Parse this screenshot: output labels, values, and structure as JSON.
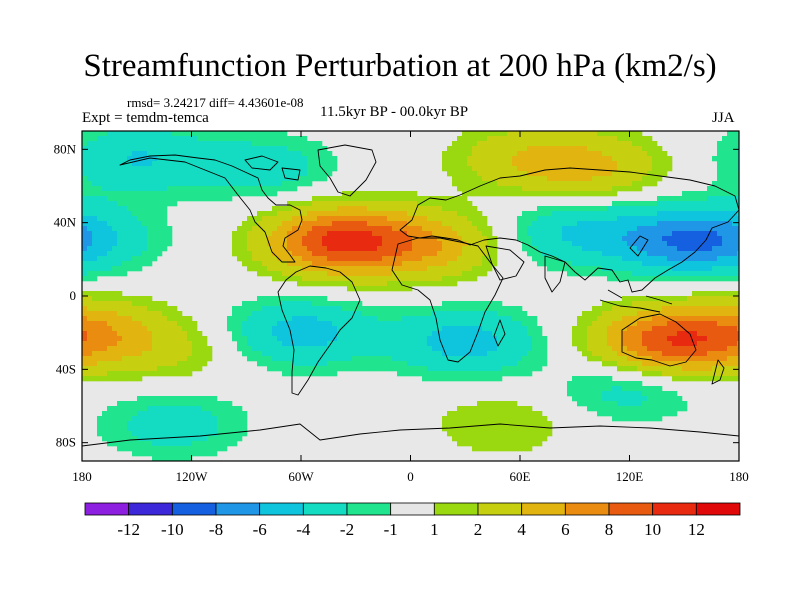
{
  "title": "Streamfunction Perturbation at 200 hPa (km2/s)",
  "stats": "rmsd= 3.24217  diff= 4.43601e-08",
  "experiment": "Expt = temdm-temca",
  "period": "11.5kyr BP - 00.0kyr BP",
  "season": "JJA",
  "map": {
    "lon_range": [
      -180,
      180
    ],
    "lat_range": [
      -90,
      90
    ],
    "x_ticks": [
      {
        "lon": -180,
        "label": "180"
      },
      {
        "lon": -120,
        "label": "120W"
      },
      {
        "lon": -60,
        "label": "60W"
      },
      {
        "lon": 0,
        "label": "0"
      },
      {
        "lon": 60,
        "label": "60E"
      },
      {
        "lon": 120,
        "label": "120E"
      },
      {
        "lon": 180,
        "label": "180"
      }
    ],
    "y_ticks": [
      {
        "lat": 80,
        "label": "80N"
      },
      {
        "lat": 40,
        "label": "40N"
      },
      {
        "lat": 0,
        "label": "0"
      },
      {
        "lat": -40,
        "label": "40S"
      },
      {
        "lat": -80,
        "label": "80S"
      }
    ],
    "background_color": "#e8e8e8",
    "anomaly_centers": [
      {
        "lon": -150,
        "lat": 75,
        "value": -4
      },
      {
        "lon": -80,
        "lat": 70,
        "value": -3
      },
      {
        "lon": 100,
        "lat": 70,
        "value": 4
      },
      {
        "lon": 60,
        "lat": 75,
        "value": 3
      },
      {
        "lon": -40,
        "lat": 30,
        "value": 10
      },
      {
        "lon": 10,
        "lat": 28,
        "value": 5
      },
      {
        "lon": -175,
        "lat": 32,
        "value": -3
      },
      {
        "lon": 150,
        "lat": 30,
        "value": -7
      },
      {
        "lon": 90,
        "lat": 35,
        "value": -4
      },
      {
        "lon": -60,
        "lat": -20,
        "value": -5
      },
      {
        "lon": 30,
        "lat": -25,
        "value": -5
      },
      {
        "lon": -130,
        "lat": -30,
        "value": 2
      },
      {
        "lon": 140,
        "lat": -25,
        "value": 9
      },
      {
        "lon": -175,
        "lat": -20,
        "value": 5
      },
      {
        "lon": 120,
        "lat": -50,
        "value": -3
      },
      {
        "lon": -130,
        "lat": -70,
        "value": -3
      },
      {
        "lon": 50,
        "lat": -70,
        "value": 2
      }
    ]
  },
  "colorbar": {
    "labels": [
      "-12",
      "-10",
      "-8",
      "-6",
      "-4",
      "-2",
      "-1",
      "1",
      "2",
      "4",
      "6",
      "8",
      "10",
      "12"
    ],
    "colors": [
      "#8c1fe0",
      "#3c28d8",
      "#1560e0",
      "#1f96e6",
      "#0ec5dd",
      "#13dcc2",
      "#20e48e",
      "#e6e6e6",
      "#9ad80f",
      "#c6d010",
      "#e2b40f",
      "#e98c10",
      "#e85a10",
      "#e82a10",
      "#e00808"
    ]
  }
}
